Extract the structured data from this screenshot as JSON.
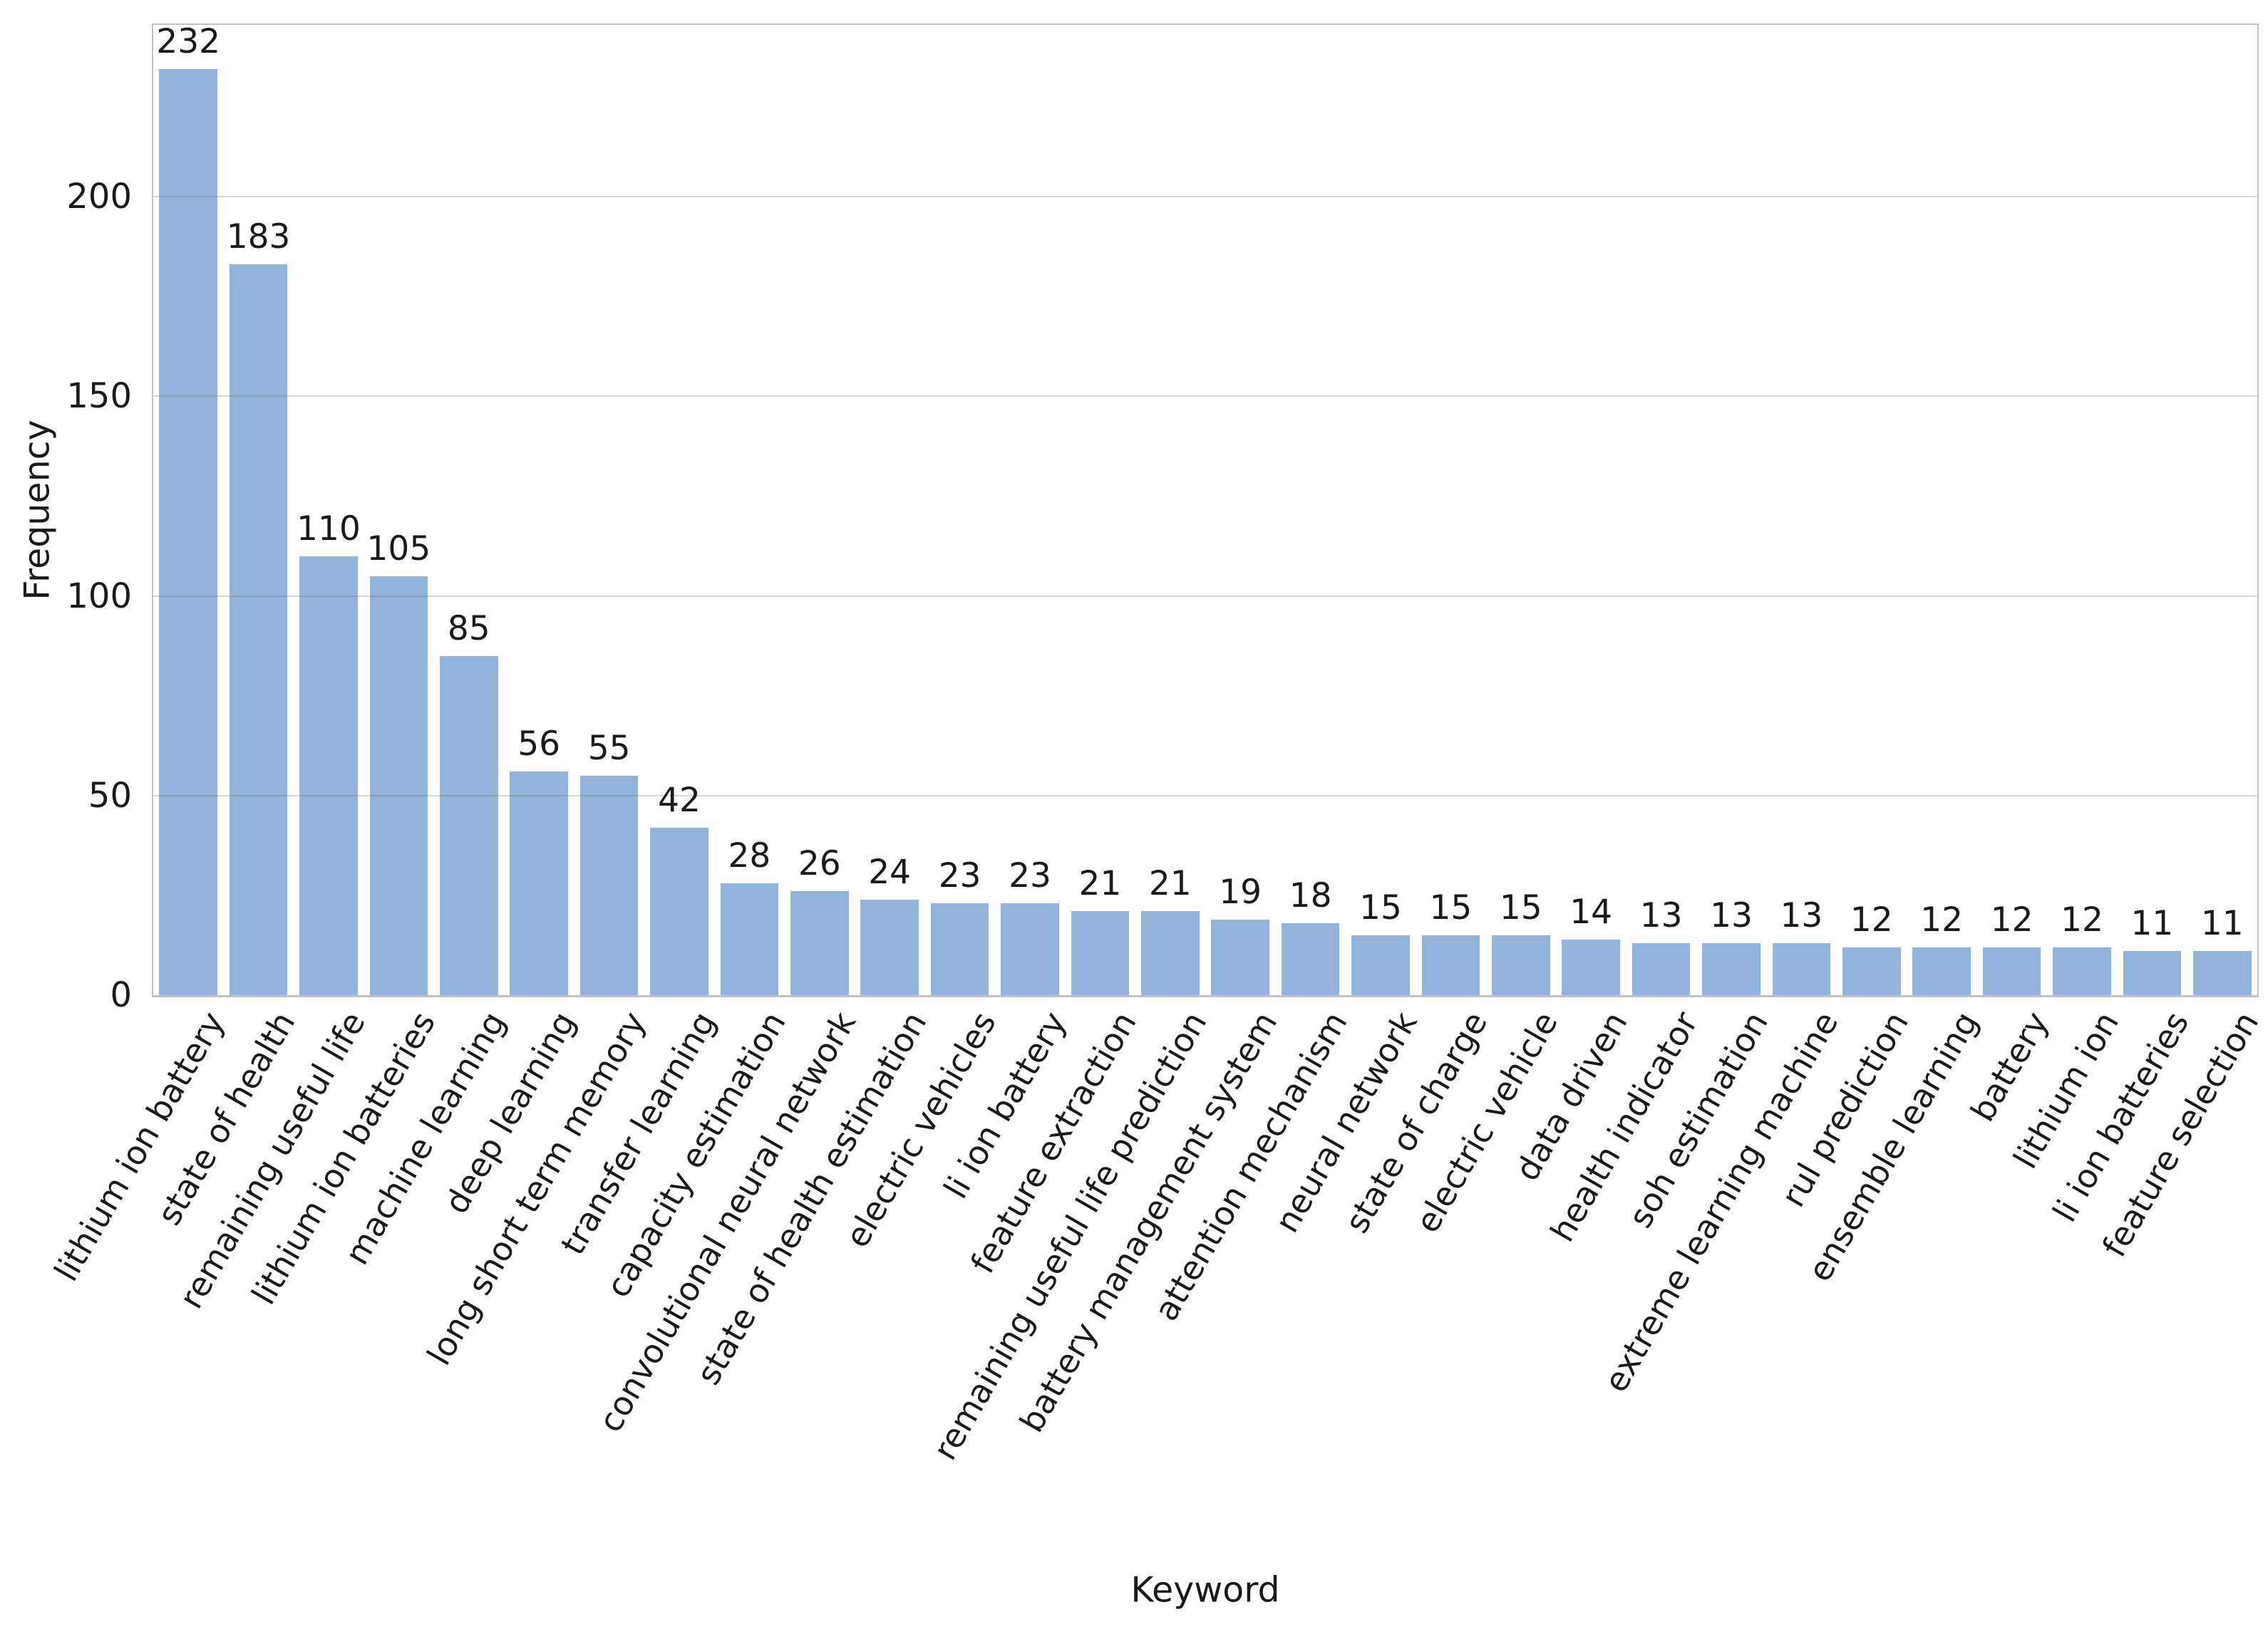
{
  "chart_data": {
    "type": "bar",
    "title": "",
    "xlabel": "Keyword",
    "ylabel": "Frequency",
    "categories": [
      "lithium ion battery",
      "state of health",
      "remaining useful life",
      "lithium ion batteries",
      "machine learning",
      "deep learning",
      "long short term memory",
      "transfer learning",
      "capacity estimation",
      "convolutional neural network",
      "state of health estimation",
      "electric vehicles",
      "li ion battery",
      "feature extraction",
      "remaining useful life prediction",
      "battery management system",
      "attention mechanism",
      "neural network",
      "state of charge",
      "electric vehicle",
      "data driven",
      "health indicator",
      "soh estimation",
      "extreme learning machine",
      "rul prediction",
      "ensemble learning",
      "battery",
      "lithium ion",
      "li ion batteries",
      "feature selection"
    ],
    "values": [
      232,
      183,
      110,
      105,
      85,
      56,
      55,
      42,
      28,
      26,
      24,
      23,
      23,
      21,
      21,
      19,
      18,
      15,
      15,
      15,
      14,
      13,
      13,
      13,
      12,
      12,
      12,
      12,
      11,
      11
    ],
    "yticks": [
      0,
      50,
      100,
      150,
      200
    ],
    "ylim": [
      0,
      243
    ],
    "grid": "horizontal",
    "legend": "none",
    "bar_color": "#92b4dc",
    "grid_color": "rgba(105,105,105,0.26)",
    "spine_color": "#c2c2c2",
    "text_color": "#1a1a1a",
    "value_labels": true,
    "x_tick_rotation_deg": 60
  }
}
